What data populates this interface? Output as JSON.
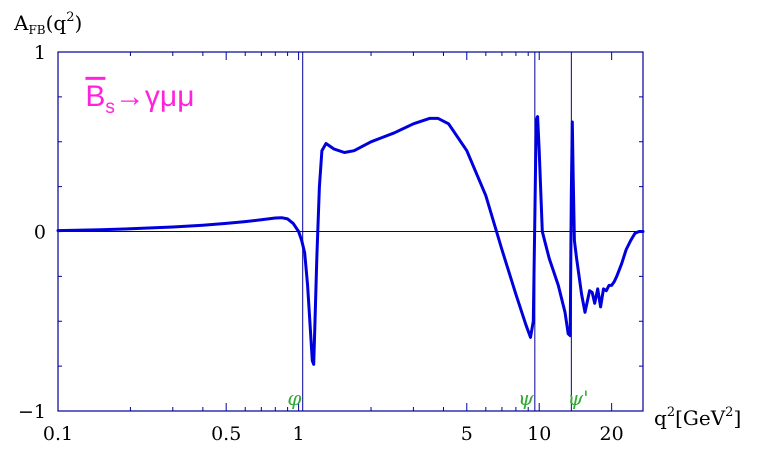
{
  "chart_data": {
    "type": "line",
    "title": "",
    "x_scale": "log",
    "xlim": [
      0.1,
      27
    ],
    "ylim": [
      -1,
      1
    ],
    "y_axis_title": {
      "base": "A",
      "sub": "FB",
      "paren_open": "(q",
      "sup": "2",
      "paren_close": ")"
    },
    "x_axis_title": {
      "base": "q",
      "sup": "2",
      "unit_open": "[GeV",
      "unit_sup": "2",
      "unit_close": "]"
    },
    "x_ticks": [
      {
        "value": 0.1,
        "label": "0.1"
      },
      {
        "value": 0.5,
        "label": "0.5"
      },
      {
        "value": 1,
        "label": "1"
      },
      {
        "value": 5,
        "label": "5"
      },
      {
        "value": 10,
        "label": "10"
      },
      {
        "value": 20,
        "label": "20"
      }
    ],
    "y_ticks": [
      {
        "value": -1,
        "label": "−1"
      },
      {
        "value": 0,
        "label": "0"
      },
      {
        "value": 1,
        "label": "1"
      }
    ],
    "minor_x_ticks": [
      0.2,
      0.3,
      0.4,
      0.6,
      0.7,
      0.8,
      0.9,
      2,
      3,
      4,
      6,
      7,
      8,
      9
    ],
    "minor_y_ticks": [
      -0.75,
      -0.5,
      -0.25,
      0.25,
      0.5,
      0.75
    ],
    "annotation": {
      "text_bar": "B",
      "text_sub": "s",
      "text_rest": "→γμμ",
      "color": "#ff22dd",
      "x": 0.13,
      "y": 0.7
    },
    "resonances": [
      {
        "label": "φ",
        "x": 1.04,
        "label_x": 0.96
      },
      {
        "label": "ψ",
        "x": 9.59,
        "label_x": 8.8
      },
      {
        "label": "ψ'",
        "x": 13.6,
        "label_x": 14.5
      }
    ],
    "line_color": "#0000dd",
    "grid_color": "#000099",
    "label_color": "#33aa33",
    "series": [
      {
        "x": [
          0.1,
          0.15,
          0.2,
          0.3,
          0.4,
          0.5,
          0.6,
          0.7,
          0.8,
          0.85,
          0.9,
          0.95,
          1.0,
          1.03,
          1.06,
          1.09,
          1.12,
          1.14,
          1.155,
          1.17,
          1.19,
          1.22,
          1.25,
          1.3,
          1.4,
          1.55,
          1.7,
          2.0,
          2.5,
          3.0,
          3.5,
          3.8,
          4.2,
          5.0,
          6.0,
          7.0,
          8.0,
          8.8,
          9.2,
          9.45,
          9.6,
          9.72,
          9.85,
          10.0,
          10.3,
          11.0,
          12.0,
          12.8,
          13.2,
          13.45,
          13.6,
          13.72,
          13.85,
          14.0,
          14.3,
          15.0,
          15.5,
          16.2,
          16.6,
          17.0,
          17.5,
          18.0,
          18.5,
          19.0,
          19.5,
          20.0,
          20.5,
          21.0,
          22.0,
          23.0,
          24.0,
          25.0,
          26.0,
          27.0
        ],
        "y": [
          0.005,
          0.01,
          0.015,
          0.025,
          0.035,
          0.045,
          0.055,
          0.065,
          0.075,
          0.077,
          0.07,
          0.045,
          0.0,
          -0.05,
          -0.12,
          -0.3,
          -0.55,
          -0.72,
          -0.74,
          -0.5,
          -0.15,
          0.25,
          0.45,
          0.49,
          0.46,
          0.44,
          0.45,
          0.5,
          0.55,
          0.6,
          0.63,
          0.63,
          0.6,
          0.45,
          0.2,
          -0.1,
          -0.35,
          -0.52,
          -0.59,
          -0.5,
          0.1,
          0.62,
          0.64,
          0.45,
          0.0,
          -0.15,
          -0.3,
          -0.45,
          -0.57,
          -0.58,
          0.2,
          0.61,
          0.3,
          -0.05,
          -0.15,
          -0.35,
          -0.45,
          -0.33,
          -0.34,
          -0.4,
          -0.32,
          -0.42,
          -0.32,
          -0.33,
          -0.3,
          -0.3,
          -0.28,
          -0.25,
          -0.18,
          -0.1,
          -0.05,
          -0.01,
          0.0,
          0.0
        ]
      }
    ]
  }
}
